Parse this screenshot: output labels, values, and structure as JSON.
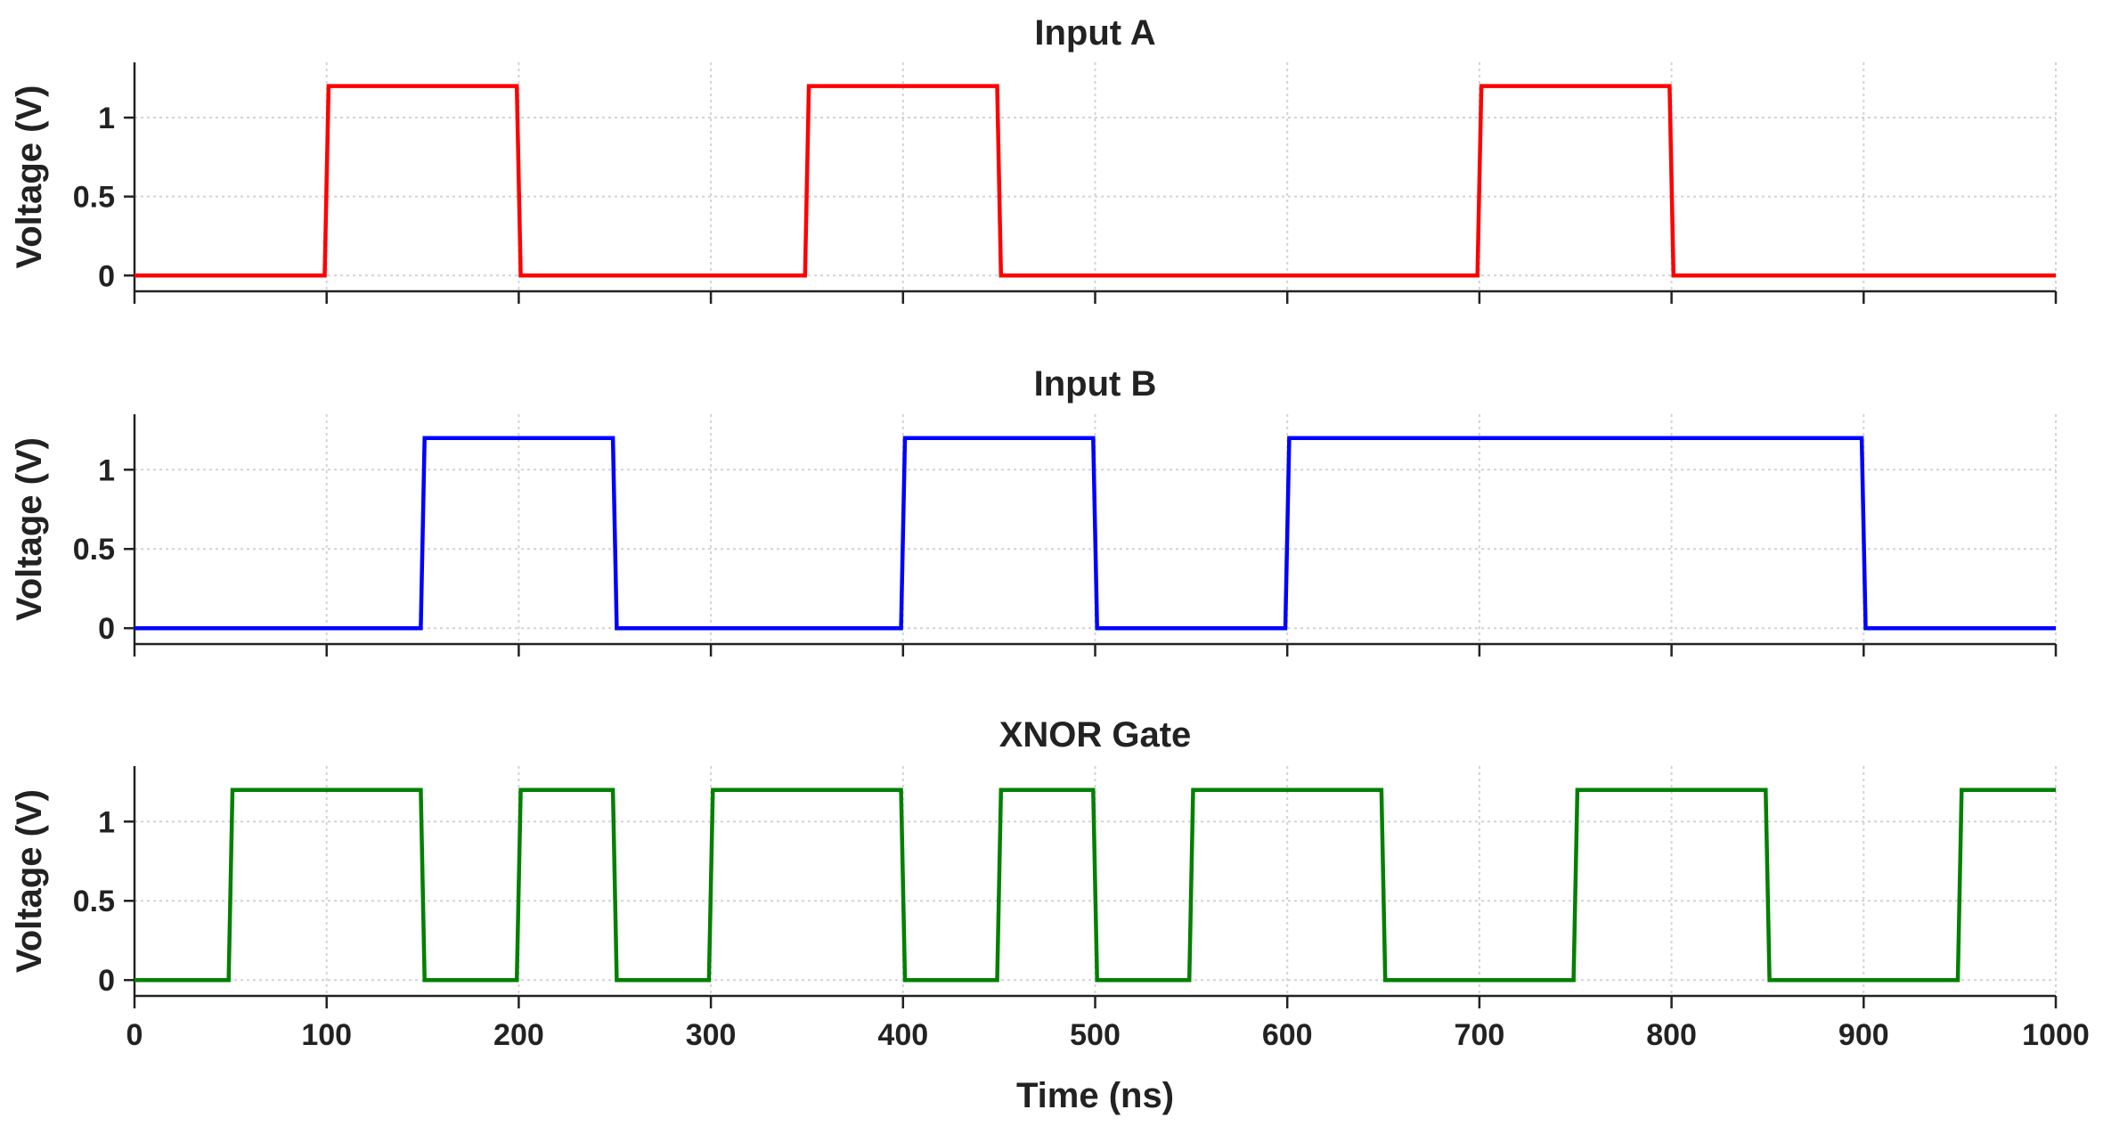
{
  "chart_data": [
    {
      "type": "line",
      "title": "Input A",
      "xlabel": "",
      "ylabel": "Voltage (V)",
      "xlim": [
        0,
        1000
      ],
      "ylim": [
        -0.1,
        1.35
      ],
      "yticks": [
        0,
        0.5,
        1
      ],
      "ytick_labels": [
        "0",
        "0.5",
        "1"
      ],
      "xticks": [
        0,
        100,
        200,
        300,
        400,
        500,
        600,
        700,
        800,
        900,
        1000
      ],
      "xtick_labels": [],
      "grid": true,
      "color": "#ff0000",
      "series": [
        {
          "name": "Input A",
          "x": [
            0,
            99,
            101,
            199,
            201,
            349,
            351,
            449,
            451,
            699,
            701,
            799,
            801,
            1000
          ],
          "y": [
            0,
            0,
            1.2,
            1.2,
            0,
            0,
            1.2,
            1.2,
            0,
            0,
            1.2,
            1.2,
            0,
            0
          ]
        }
      ]
    },
    {
      "type": "line",
      "title": "Input B",
      "xlabel": "",
      "ylabel": "Voltage (V)",
      "xlim": [
        0,
        1000
      ],
      "ylim": [
        -0.1,
        1.35
      ],
      "yticks": [
        0,
        0.5,
        1
      ],
      "ytick_labels": [
        "0",
        "0.5",
        "1"
      ],
      "xticks": [
        0,
        100,
        200,
        300,
        400,
        500,
        600,
        700,
        800,
        900,
        1000
      ],
      "xtick_labels": [],
      "grid": true,
      "color": "#0000ff",
      "series": [
        {
          "name": "Input B",
          "x": [
            0,
            149,
            151,
            249,
            251,
            399,
            401,
            499,
            501,
            599,
            601,
            899,
            901,
            1000
          ],
          "y": [
            0,
            0,
            1.2,
            1.2,
            0,
            0,
            1.2,
            1.2,
            0,
            0,
            1.2,
            1.2,
            0,
            0
          ]
        }
      ]
    },
    {
      "type": "line",
      "title": "XNOR Gate",
      "xlabel": "Time (ns)",
      "ylabel": "Voltage (V)",
      "xlim": [
        0,
        1000
      ],
      "ylim": [
        -0.1,
        1.35
      ],
      "yticks": [
        0,
        0.5,
        1
      ],
      "ytick_labels": [
        "0",
        "0.5",
        "1"
      ],
      "xticks": [
        0,
        100,
        200,
        300,
        400,
        500,
        600,
        700,
        800,
        900,
        1000
      ],
      "xtick_labels": [
        "0",
        "100",
        "200",
        "300",
        "400",
        "500",
        "600",
        "700",
        "800",
        "900",
        "1000"
      ],
      "grid": true,
      "color": "#008000",
      "series": [
        {
          "name": "XNOR Gate",
          "x": [
            0,
            49,
            51,
            149,
            151,
            199,
            201,
            249,
            251,
            299,
            301,
            399,
            401,
            449,
            451,
            499,
            501,
            549,
            551,
            649,
            651,
            749,
            751,
            849,
            851,
            949,
            951,
            1000
          ],
          "y": [
            0,
            0,
            1.2,
            1.2,
            0,
            0,
            1.2,
            1.2,
            0,
            0,
            1.2,
            1.2,
            0,
            0,
            1.2,
            1.2,
            0,
            0,
            1.2,
            1.2,
            0,
            0,
            1.2,
            1.2,
            0,
            0,
            1.2,
            1.2
          ]
        }
      ]
    }
  ]
}
